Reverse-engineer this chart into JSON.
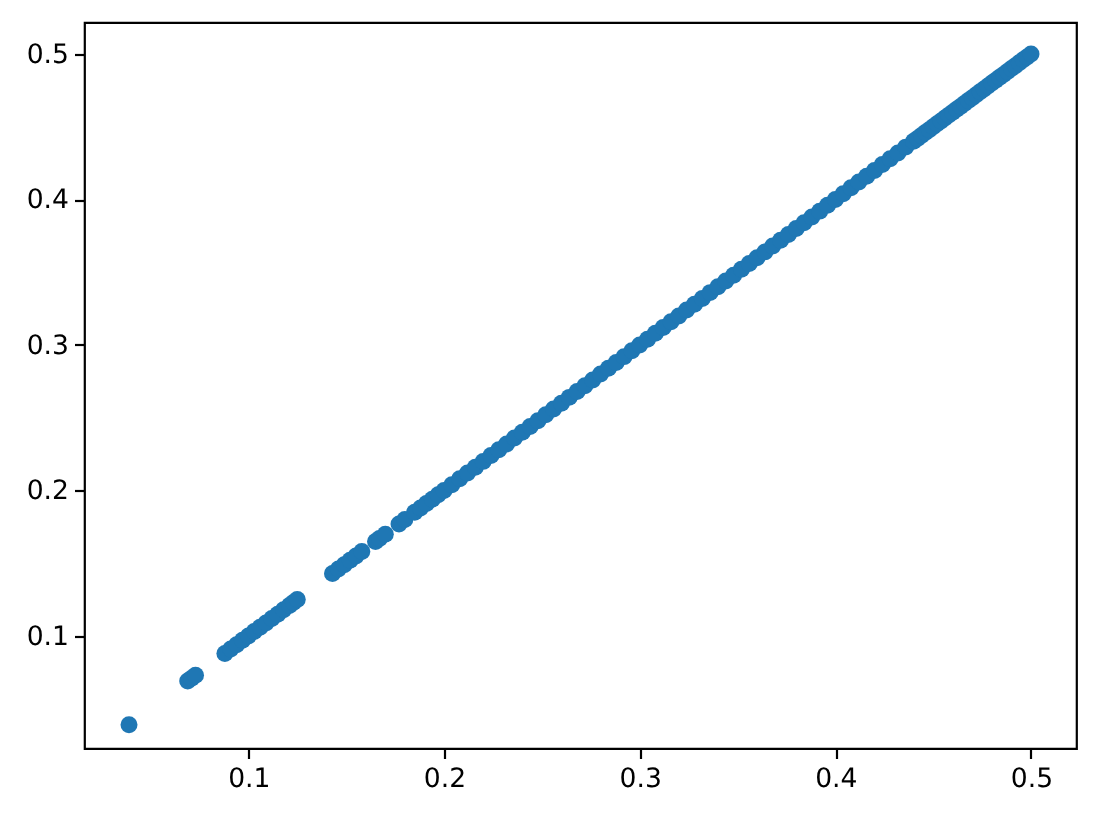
{
  "chart_data": {
    "type": "scatter",
    "x": [
      0.039,
      0.069,
      0.071,
      0.073,
      0.088,
      0.091,
      0.094,
      0.097,
      0.1,
      0.103,
      0.106,
      0.109,
      0.112,
      0.115,
      0.118,
      0.121,
      0.123,
      0.125,
      0.143,
      0.146,
      0.149,
      0.152,
      0.155,
      0.158,
      0.165,
      0.167,
      0.17,
      0.177,
      0.18,
      0.185,
      0.188,
      0.191,
      0.194,
      0.197,
      0.2,
      0.204,
      0.208,
      0.212,
      0.216,
      0.22,
      0.224,
      0.228,
      0.232,
      0.236,
      0.24,
      0.244,
      0.248,
      0.252,
      0.256,
      0.26,
      0.264,
      0.268,
      0.272,
      0.276,
      0.28,
      0.284,
      0.288,
      0.292,
      0.296,
      0.3,
      0.304,
      0.308,
      0.312,
      0.316,
      0.32,
      0.324,
      0.328,
      0.332,
      0.336,
      0.34,
      0.344,
      0.348,
      0.352,
      0.356,
      0.36,
      0.364,
      0.368,
      0.372,
      0.376,
      0.38,
      0.384,
      0.388,
      0.392,
      0.396,
      0.4,
      0.404,
      0.408,
      0.412,
      0.416,
      0.42,
      0.424,
      0.428,
      0.432,
      0.436,
      0.44,
      0.442,
      0.444,
      0.446,
      0.448,
      0.45,
      0.452,
      0.454,
      0.456,
      0.458,
      0.46,
      0.462,
      0.464,
      0.466,
      0.468,
      0.47,
      0.472,
      0.474,
      0.476,
      0.478,
      0.48,
      0.482,
      0.484,
      0.486,
      0.488,
      0.49,
      0.492,
      0.494,
      0.496,
      0.498,
      0.5
    ],
    "series": [
      {
        "color": "#1f77b4",
        "values": [
          0.039,
          0.069,
          0.071,
          0.073,
          0.088,
          0.091,
          0.094,
          0.097,
          0.1,
          0.103,
          0.106,
          0.109,
          0.112,
          0.115,
          0.118,
          0.121,
          0.123,
          0.125,
          0.143,
          0.146,
          0.149,
          0.152,
          0.155,
          0.158,
          0.165,
          0.167,
          0.17,
          0.177,
          0.18,
          0.185,
          0.188,
          0.191,
          0.194,
          0.197,
          0.2,
          0.204,
          0.208,
          0.212,
          0.216,
          0.22,
          0.224,
          0.228,
          0.232,
          0.236,
          0.24,
          0.244,
          0.248,
          0.252,
          0.256,
          0.26,
          0.264,
          0.268,
          0.272,
          0.276,
          0.28,
          0.284,
          0.288,
          0.292,
          0.296,
          0.3,
          0.304,
          0.308,
          0.312,
          0.316,
          0.32,
          0.324,
          0.328,
          0.332,
          0.336,
          0.34,
          0.344,
          0.348,
          0.352,
          0.356,
          0.36,
          0.364,
          0.368,
          0.372,
          0.376,
          0.38,
          0.384,
          0.388,
          0.392,
          0.396,
          0.4,
          0.404,
          0.408,
          0.412,
          0.416,
          0.42,
          0.424,
          0.428,
          0.432,
          0.436,
          0.44,
          0.442,
          0.444,
          0.446,
          0.448,
          0.45,
          0.452,
          0.454,
          0.456,
          0.458,
          0.46,
          0.462,
          0.464,
          0.466,
          0.468,
          0.47,
          0.472,
          0.474,
          0.476,
          0.478,
          0.48,
          0.482,
          0.484,
          0.486,
          0.488,
          0.49,
          0.492,
          0.494,
          0.496,
          0.498,
          0.5
        ]
      }
    ],
    "xlim": [
      0.016,
      0.523
    ],
    "ylim": [
      0.023,
      0.522
    ],
    "xticks": [
      0.1,
      0.2,
      0.3,
      0.4,
      0.5
    ],
    "yticks": [
      0.1,
      0.2,
      0.3,
      0.4,
      0.5
    ],
    "grid": false,
    "marker": "circle"
  }
}
